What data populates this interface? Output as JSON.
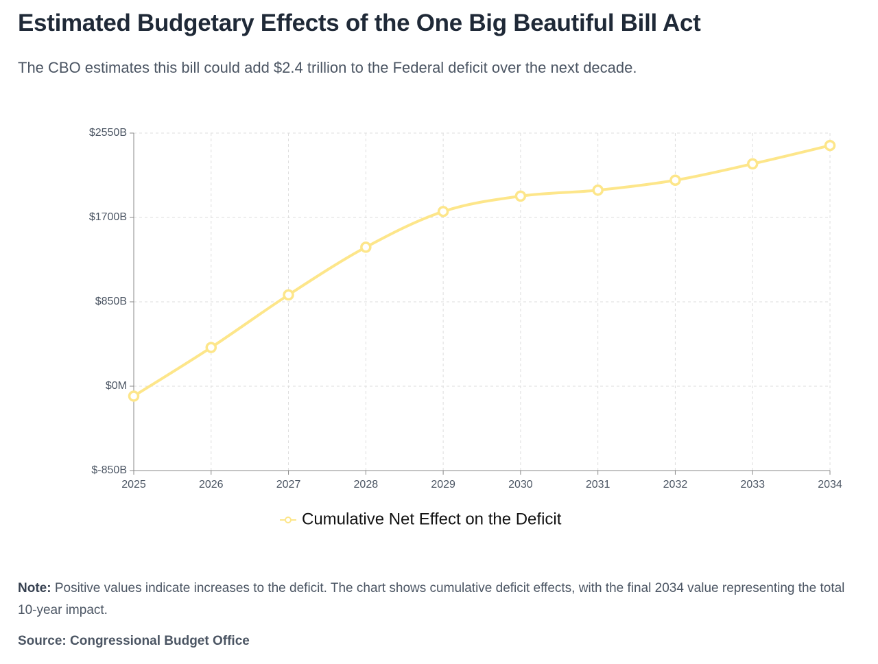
{
  "chart_data": {
    "type": "line",
    "title": "Estimated Budgetary Effects of the One Big Beautiful Bill Act",
    "subtitle": "The CBO estimates this bill could add $2.4 trillion to the Federal deficit over the next decade.",
    "categories": [
      "2025",
      "2026",
      "2027",
      "2028",
      "2029",
      "2030",
      "2031",
      "2032",
      "2033",
      "2034"
    ],
    "series": [
      {
        "name": "Cumulative Net Effect on the Deficit",
        "color": "#fde68a",
        "values": [
          -100,
          390,
          920,
          1400,
          1760,
          1915,
          1975,
          2075,
          2240,
          2425
        ]
      }
    ],
    "ylim": [
      -850,
      2550
    ],
    "yticks": [
      {
        "value": -850,
        "label": "$-850B"
      },
      {
        "value": 0,
        "label": "$0M"
      },
      {
        "value": 850,
        "label": "$850B"
      },
      {
        "value": 1700,
        "label": "$1700B"
      },
      {
        "value": 2550,
        "label": "$2550B"
      }
    ],
    "grid": true,
    "legend": "bottom",
    "note": {
      "label": "Note:",
      "text": "Positive values indicate increases to the deficit. The chart shows cumulative deficit effects, with the final 2034 value representing the total 10-year impact."
    },
    "source": "Source: Congressional Budget Office"
  }
}
